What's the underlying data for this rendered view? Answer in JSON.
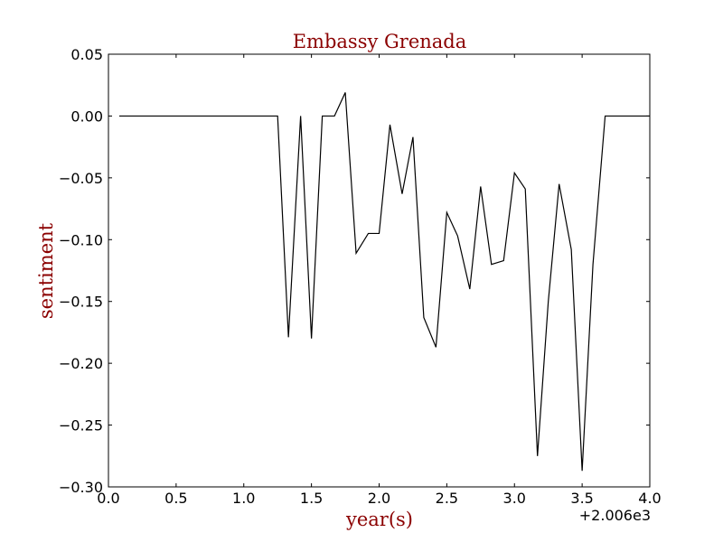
{
  "chart_data": {
    "type": "line",
    "title": "Embassy Grenada",
    "xlabel": "year(s)",
    "ylabel": "sentiment",
    "x_offset_label": "+2.006e3",
    "xlim": [
      0.0,
      4.0
    ],
    "ylim": [
      -0.3,
      0.05
    ],
    "x_ticks": [
      "0.0",
      "0.5",
      "1.0",
      "1.5",
      "2.0",
      "2.5",
      "3.0",
      "3.5",
      "4.0"
    ],
    "x_tick_values": [
      0.0,
      0.5,
      1.0,
      1.5,
      2.0,
      2.5,
      3.0,
      3.5,
      4.0
    ],
    "y_ticks": [
      "0.05",
      "0.00",
      "−0.05",
      "−0.10",
      "−0.15",
      "−0.20",
      "−0.25",
      "−0.30"
    ],
    "y_tick_values": [
      0.05,
      0.0,
      -0.05,
      -0.1,
      -0.15,
      -0.2,
      -0.25,
      -0.3
    ],
    "grid": false,
    "line_color": "#000000",
    "label_color": "#8b0000",
    "series": [
      {
        "x": [
          0.08,
          0.17,
          0.25,
          0.33,
          0.42,
          0.5,
          0.58,
          0.67,
          0.75,
          0.83,
          0.92,
          1.0,
          1.08,
          1.17,
          1.25,
          1.33,
          1.42,
          1.5,
          1.58,
          1.67,
          1.75,
          1.83,
          1.92,
          2.0,
          2.08,
          2.17,
          2.25,
          2.33,
          2.42,
          2.5,
          2.58,
          2.67,
          2.75,
          2.83,
          2.92,
          3.0,
          3.08,
          3.17,
          3.25,
          3.33,
          3.42,
          3.5,
          3.58,
          3.67,
          3.75,
          3.83,
          3.92,
          4.0
        ],
        "y": [
          0.0,
          0.0,
          0.0,
          0.0,
          0.0,
          0.0,
          0.0,
          0.0,
          0.0,
          0.0,
          0.0,
          0.0,
          0.0,
          0.0,
          0.0,
          -0.179,
          0.0,
          -0.18,
          0.0,
          0.0,
          0.019,
          -0.111,
          -0.095,
          -0.095,
          -0.007,
          -0.063,
          -0.017,
          -0.163,
          -0.187,
          -0.078,
          -0.097,
          -0.14,
          -0.057,
          -0.12,
          -0.117,
          -0.046,
          -0.059,
          -0.275,
          -0.15,
          -0.055,
          -0.108,
          -0.287,
          -0.12,
          0.0,
          0.0,
          0.0,
          0.0,
          0.0
        ]
      }
    ]
  }
}
